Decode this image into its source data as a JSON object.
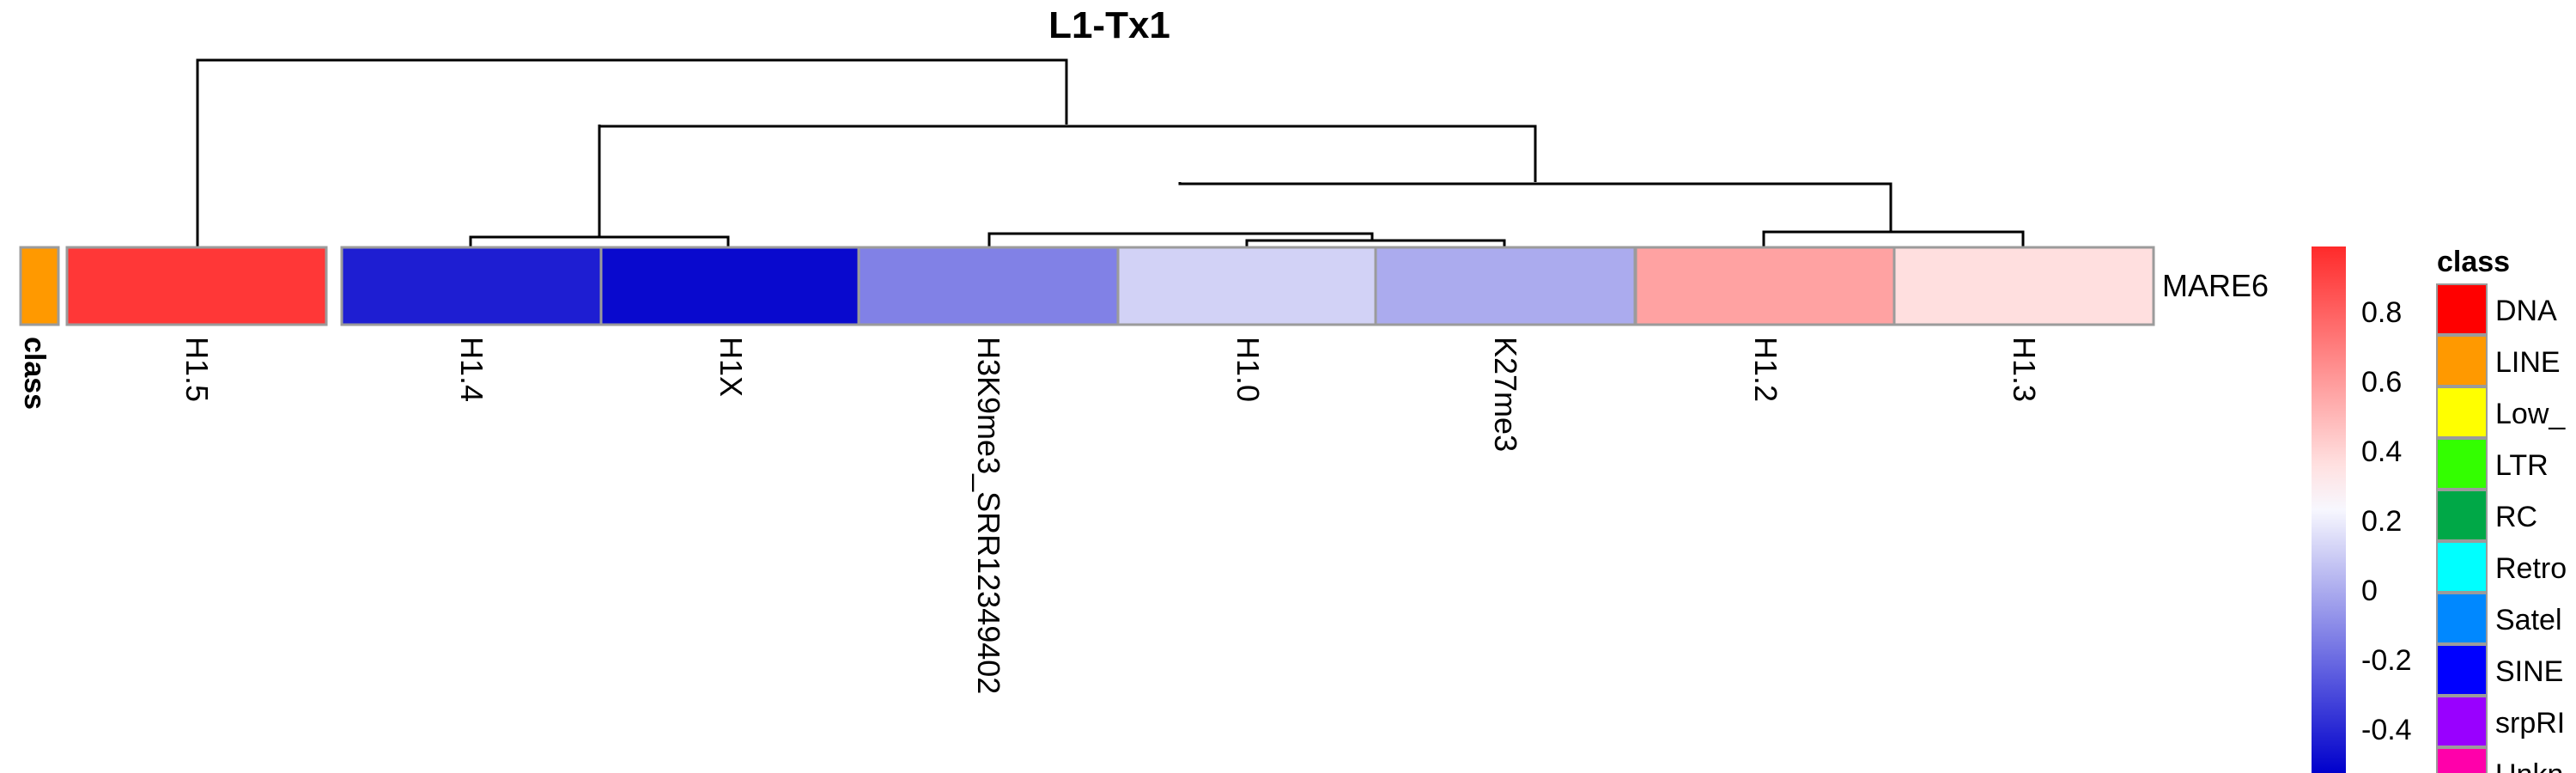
{
  "chart_data": {
    "type": "heatmap",
    "title": "L1-Tx1",
    "row_labels": [
      "MARE6"
    ],
    "annotation": {
      "name": "class",
      "value": "LINE",
      "color": "#FF9900"
    },
    "columns": [
      {
        "name": "H1.5",
        "value": 0.95
      },
      {
        "name": "H1.4",
        "value": -0.55
      },
      {
        "name": "H1X",
        "value": -0.62
      },
      {
        "name": "H3K9me3_SRR12349402",
        "value": -0.22
      },
      {
        "name": "H1.0",
        "value": 0.05
      },
      {
        "name": "K27me3",
        "value": -0.08
      },
      {
        "name": "H1.2",
        "value": 0.55
      },
      {
        "name": "H1.3",
        "value": 0.32
      }
    ],
    "color_scale": {
      "min": -0.65,
      "mid": 0.2,
      "max": 1.0,
      "low_color": "#0000CC",
      "mid_color": "#FFFFFF",
      "high_color": "#FF2A2A",
      "ticks": [
        "0.8",
        "0.6",
        "0.4",
        "0.2",
        "0",
        "-0.2",
        "-0.4"
      ]
    },
    "legend": {
      "title": "class",
      "items": [
        {
          "label": "DNA",
          "color": "#FF0000"
        },
        {
          "label": "LINE",
          "color": "#FF9900"
        },
        {
          "label": "Low_",
          "color": "#FFFF00"
        },
        {
          "label": "LTR",
          "color": "#33FF00"
        },
        {
          "label": "RC",
          "color": "#00A847"
        },
        {
          "label": "Retro",
          "color": "#00FFFF"
        },
        {
          "label": "Satel",
          "color": "#0088FF"
        },
        {
          "label": "SINE",
          "color": "#0000FF"
        },
        {
          "label": "srpRI",
          "color": "#9900FF"
        },
        {
          "label": "Unkn",
          "color": "#FF00AA"
        }
      ]
    }
  }
}
